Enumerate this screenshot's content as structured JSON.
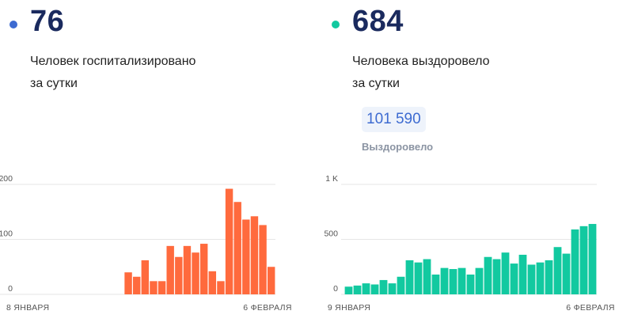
{
  "left_panel": {
    "dot_color": "#3d6bd1",
    "number": "76",
    "caption_line1": "Человек госпитализировано",
    "caption_line2": "за сутки"
  },
  "right_panel": {
    "dot_color": "#12c9a0",
    "number": "684",
    "caption_line1": "Человека выздоровело",
    "caption_line2": "за сутки",
    "total_value": "101 590",
    "total_label": "Выздоровело"
  },
  "chart_data": [
    {
      "type": "bar",
      "color": "#ff6a3d",
      "ylim": [
        0,
        200
      ],
      "yticks": [
        0,
        100,
        200
      ],
      "ytick_labels": [
        "0",
        "100",
        "200"
      ],
      "start_date_label": "8 ЯНВАРЯ",
      "end_date_label": "6 ФЕВРАЛЯ",
      "values": [
        0,
        0,
        0,
        0,
        0,
        0,
        0,
        0,
        0,
        0,
        0,
        0,
        0,
        0,
        40,
        32,
        62,
        24,
        24,
        88,
        68,
        88,
        76,
        92,
        42,
        24,
        192,
        168,
        136,
        142,
        126,
        50
      ]
    },
    {
      "type": "bar",
      "color": "#12c9a0",
      "ylim": [
        0,
        1000
      ],
      "yticks": [
        0,
        500,
        1000
      ],
      "ytick_labels": [
        "0",
        "500",
        "1 K"
      ],
      "start_date_label": "9 ЯНВАРЯ",
      "end_date_label": "6 ФЕВРАЛЯ",
      "values": [
        70,
        80,
        100,
        90,
        130,
        100,
        160,
        310,
        290,
        320,
        180,
        240,
        230,
        240,
        180,
        240,
        340,
        320,
        380,
        280,
        360,
        270,
        290,
        310,
        430,
        370,
        590,
        620,
        640
      ]
    }
  ]
}
